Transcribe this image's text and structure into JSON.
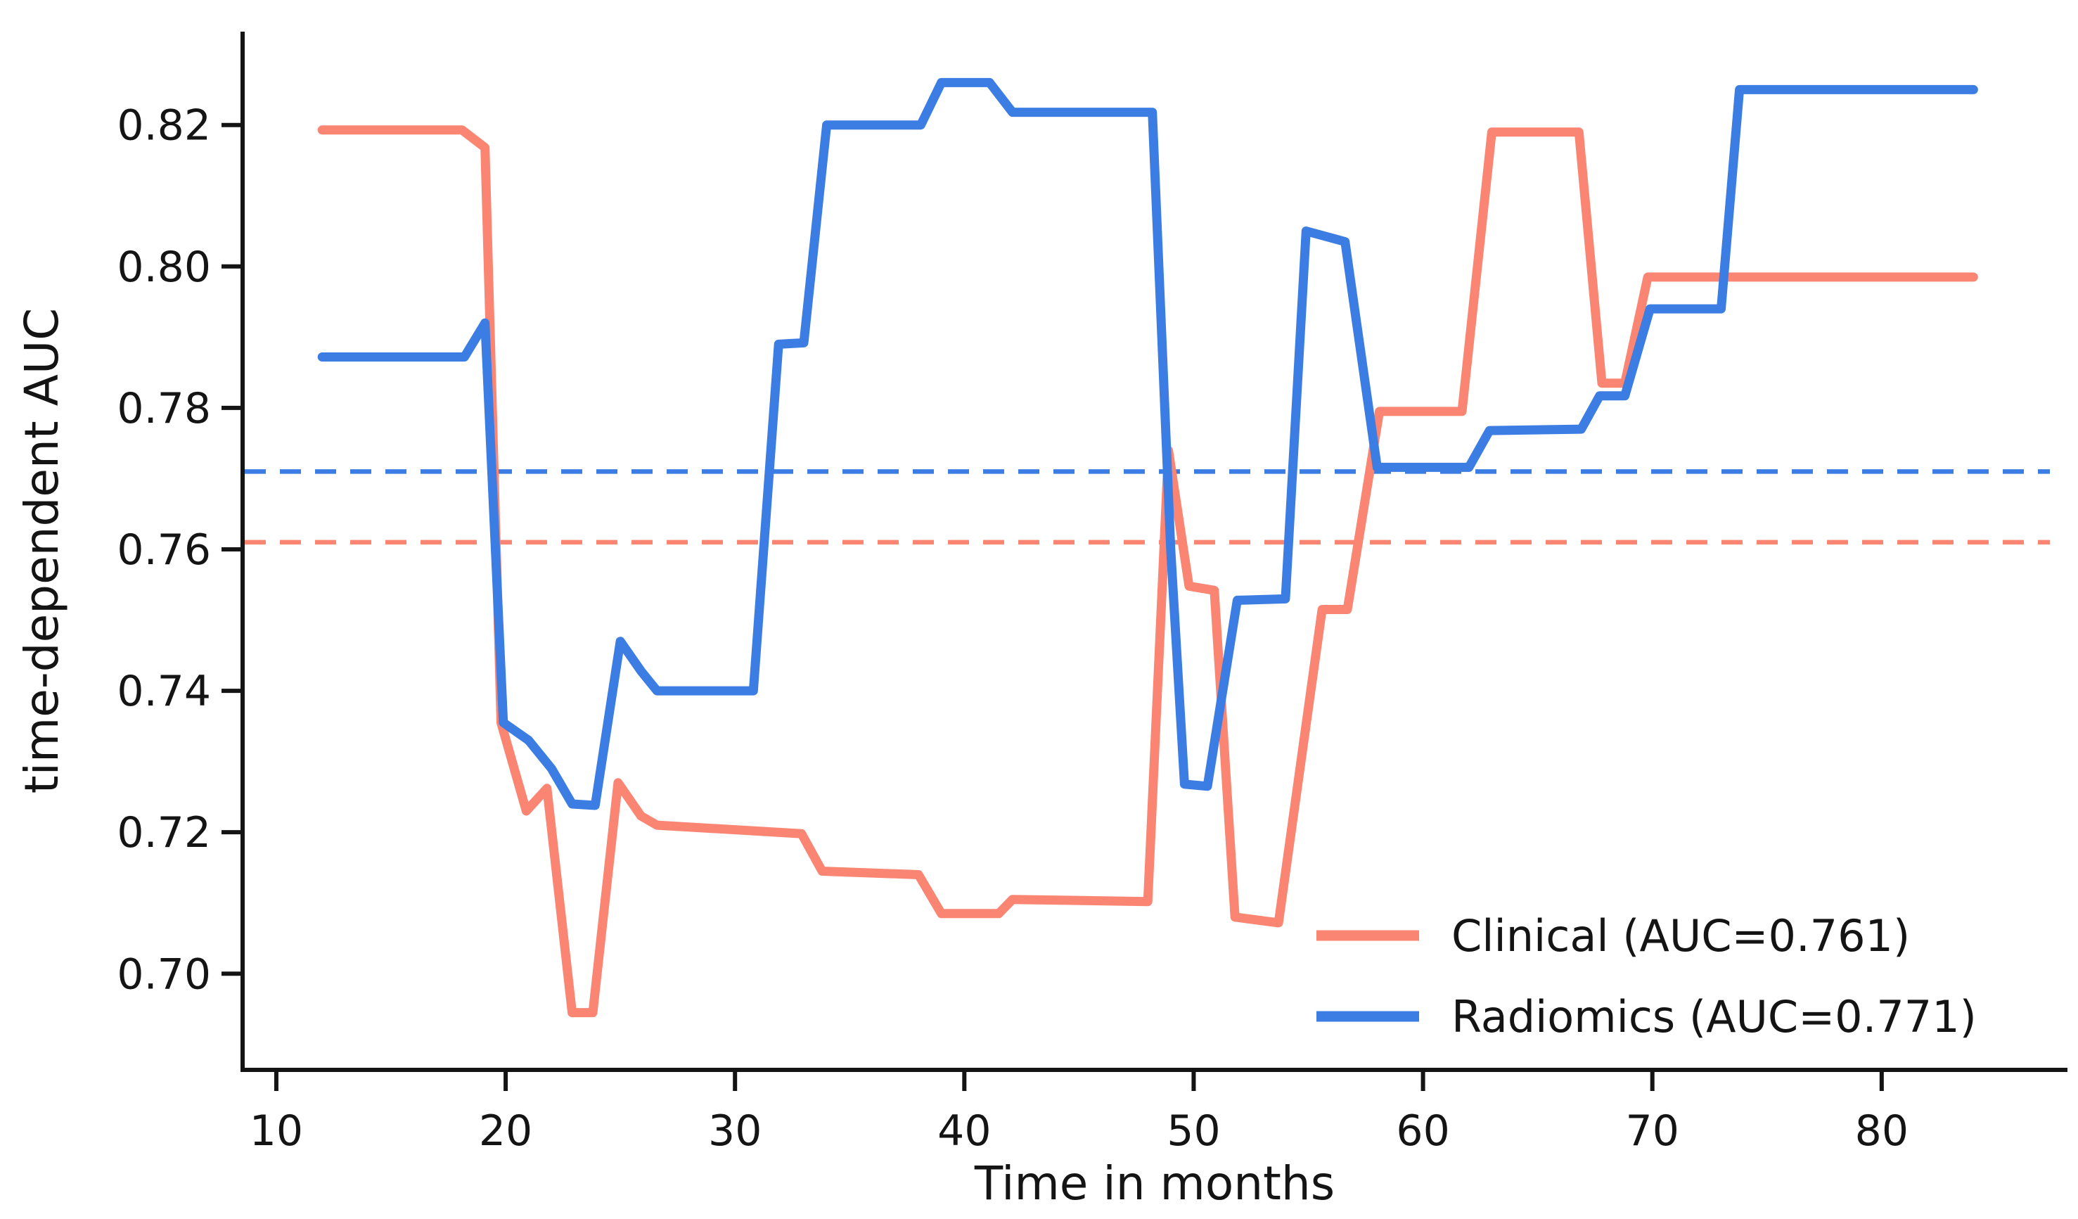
{
  "figure_title": "",
  "chart_data": {
    "type": "line",
    "title": "",
    "xlabel": "Time in months",
    "ylabel": "time-dependent AUC",
    "x_ticks": [
      10,
      20,
      30,
      40,
      50,
      60,
      70,
      80
    ],
    "y_ticks": [
      0.7,
      0.72,
      0.74,
      0.76,
      0.78,
      0.8,
      0.82
    ],
    "xlim": [
      8.53,
      88.1
    ],
    "ylim": [
      0.6864,
      0.8332
    ],
    "grid": false,
    "legend_position": "lower right",
    "background_color": "#ffffff",
    "text_color": "#141414",
    "series": [
      {
        "name": "Clinical (AUC=0.761)",
        "short_name": "Clinical",
        "mean_auc": 0.761,
        "color": "#FA8572",
        "style": "solid",
        "points": [
          [
            12.0,
            0.8193
          ],
          [
            18.1,
            0.8193
          ],
          [
            19.1,
            0.8168
          ],
          [
            19.8,
            0.7355
          ],
          [
            20.9,
            0.723
          ],
          [
            21.8,
            0.7262
          ],
          [
            22.9,
            0.6945
          ],
          [
            23.8,
            0.6945
          ],
          [
            24.9,
            0.727
          ],
          [
            25.9,
            0.7223
          ],
          [
            26.6,
            0.721
          ],
          [
            32.9,
            0.7198
          ],
          [
            33.8,
            0.7145
          ],
          [
            38.0,
            0.714
          ],
          [
            39.0,
            0.7085
          ],
          [
            41.5,
            0.7085
          ],
          [
            42.1,
            0.7105
          ],
          [
            48.0,
            0.7102
          ],
          [
            48.9,
            0.774
          ],
          [
            49.8,
            0.7548
          ],
          [
            50.9,
            0.7542
          ],
          [
            51.8,
            0.708
          ],
          [
            53.7,
            0.7072
          ],
          [
            55.6,
            0.7515
          ],
          [
            56.7,
            0.7515
          ],
          [
            58.1,
            0.7795
          ],
          [
            61.7,
            0.7795
          ],
          [
            63.0,
            0.819
          ],
          [
            66.8,
            0.819
          ],
          [
            67.8,
            0.7835
          ],
          [
            68.8,
            0.7835
          ],
          [
            69.8,
            0.7985
          ],
          [
            84.0,
            0.7985
          ]
        ]
      },
      {
        "name": "Radiomics (AUC=0.771)",
        "short_name": "Radiomics",
        "mean_auc": 0.771,
        "color": "#3C7DE4",
        "style": "solid",
        "points": [
          [
            12.0,
            0.7872
          ],
          [
            18.2,
            0.7872
          ],
          [
            19.1,
            0.792
          ],
          [
            19.9,
            0.7355
          ],
          [
            21.0,
            0.733
          ],
          [
            22.0,
            0.729
          ],
          [
            22.9,
            0.724
          ],
          [
            23.9,
            0.7238
          ],
          [
            25.0,
            0.747
          ],
          [
            25.9,
            0.7428
          ],
          [
            26.6,
            0.74
          ],
          [
            30.8,
            0.74
          ],
          [
            31.9,
            0.789
          ],
          [
            33.0,
            0.7892
          ],
          [
            34.0,
            0.82
          ],
          [
            38.1,
            0.82
          ],
          [
            39.0,
            0.826
          ],
          [
            41.1,
            0.826
          ],
          [
            42.1,
            0.8218
          ],
          [
            48.2,
            0.8218
          ],
          [
            49.0,
            0.76
          ],
          [
            49.6,
            0.7268
          ],
          [
            50.6,
            0.7265
          ],
          [
            51.9,
            0.7528
          ],
          [
            54.0,
            0.753
          ],
          [
            54.9,
            0.805
          ],
          [
            56.6,
            0.8035
          ],
          [
            58.0,
            0.7716
          ],
          [
            62.0,
            0.7716
          ],
          [
            62.9,
            0.7768
          ],
          [
            66.9,
            0.777
          ],
          [
            67.7,
            0.7817
          ],
          [
            68.8,
            0.7817
          ],
          [
            69.9,
            0.794
          ],
          [
            73.0,
            0.794
          ],
          [
            73.8,
            0.825
          ],
          [
            84.0,
            0.825
          ]
        ]
      }
    ],
    "reference_lines": [
      {
        "name": "radiomics-mean-auc",
        "value": 0.771,
        "color": "#3C7DE4",
        "style": "dashed"
      },
      {
        "name": "clinical-mean-auc",
        "value": 0.761,
        "color": "#FA8572",
        "style": "dashed"
      }
    ],
    "legend": {
      "items": [
        {
          "label": "Clinical (AUC=0.761)",
          "color": "#FA8572"
        },
        {
          "label": "Radiomics (AUC=0.771)",
          "color": "#3C7DE4"
        }
      ]
    }
  }
}
